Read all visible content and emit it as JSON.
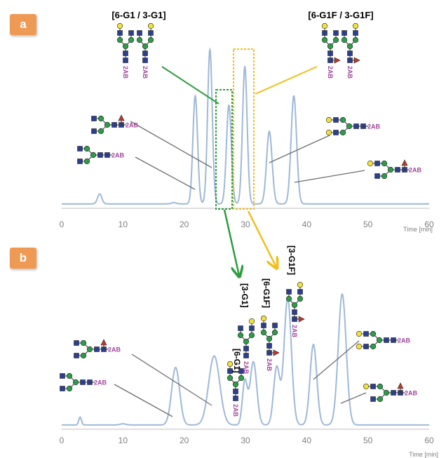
{
  "panels": [
    {
      "label": "a",
      "peak_labels": [
        "[6-G1 / 3-G1]",
        "[6-G1F / 3-G1F]"
      ]
    },
    {
      "label": "b",
      "peak_labels": [
        "[6-G1]",
        "[3-G1]",
        "[6-G1F]",
        "[3-G1F]"
      ]
    }
  ],
  "glycan_tag": "2AB",
  "colors": {
    "trace": "#9eb9d8",
    "axis": "#bfbfbf",
    "tick_text": "#7f7f7f",
    "green": "#2e9c3f",
    "yellow": "#f2bd1a",
    "leader": "#6f6f6f",
    "badge": "#ee9a54",
    "tag": "#a0459b",
    "gal": "#f2e03c",
    "glcnac": "#2c3f8f",
    "man": "#2d9c49",
    "fuc": "#c0392b"
  },
  "chart_data": [
    {
      "type": "line",
      "panel": "a",
      "xlabel": "Time [min]",
      "xlim": [
        0,
        60
      ],
      "xticks": [
        0,
        10,
        20,
        30,
        40,
        50,
        60
      ],
      "grid": false,
      "baseline": 1.5,
      "peaks": [
        {
          "x": 6.2,
          "h": 6.5,
          "w": 0.35
        },
        {
          "x": 18.3,
          "h": 0.8,
          "w": 0.4
        },
        {
          "x": 21.8,
          "h": 70.0,
          "w": 0.38
        },
        {
          "x": 24.2,
          "h": 100.0,
          "w": 0.38
        },
        {
          "x": 27.3,
          "h": 64.0,
          "w": 0.4
        },
        {
          "x": 29.9,
          "h": 89.0,
          "w": 0.38
        },
        {
          "x": 33.9,
          "h": 47.0,
          "w": 0.45
        },
        {
          "x": 37.9,
          "h": 70.0,
          "w": 0.45
        }
      ]
    },
    {
      "type": "line",
      "panel": "b",
      "xlabel": "Time [min]",
      "xlim": [
        0,
        60
      ],
      "xticks": [
        0,
        10,
        20,
        30,
        40,
        50,
        60
      ],
      "grid": false,
      "baseline": 2.0,
      "peaks": [
        {
          "x": 3.0,
          "h": 5.5,
          "w": 0.22
        },
        {
          "x": 10.0,
          "h": 0.8,
          "w": 0.5
        },
        {
          "x": 18.6,
          "h": 40.0,
          "w": 0.65
        },
        {
          "x": 24.9,
          "h": 48.0,
          "w": 0.9
        },
        {
          "x": 29.9,
          "h": 30.0,
          "w": 0.4
        },
        {
          "x": 31.3,
          "h": 44.0,
          "w": 0.55
        },
        {
          "x": 35.1,
          "h": 40.0,
          "w": 0.5
        },
        {
          "x": 36.9,
          "h": 88.0,
          "w": 0.6
        },
        {
          "x": 41.1,
          "h": 56.0,
          "w": 0.55
        },
        {
          "x": 45.8,
          "h": 91.0,
          "w": 0.65
        }
      ]
    }
  ]
}
